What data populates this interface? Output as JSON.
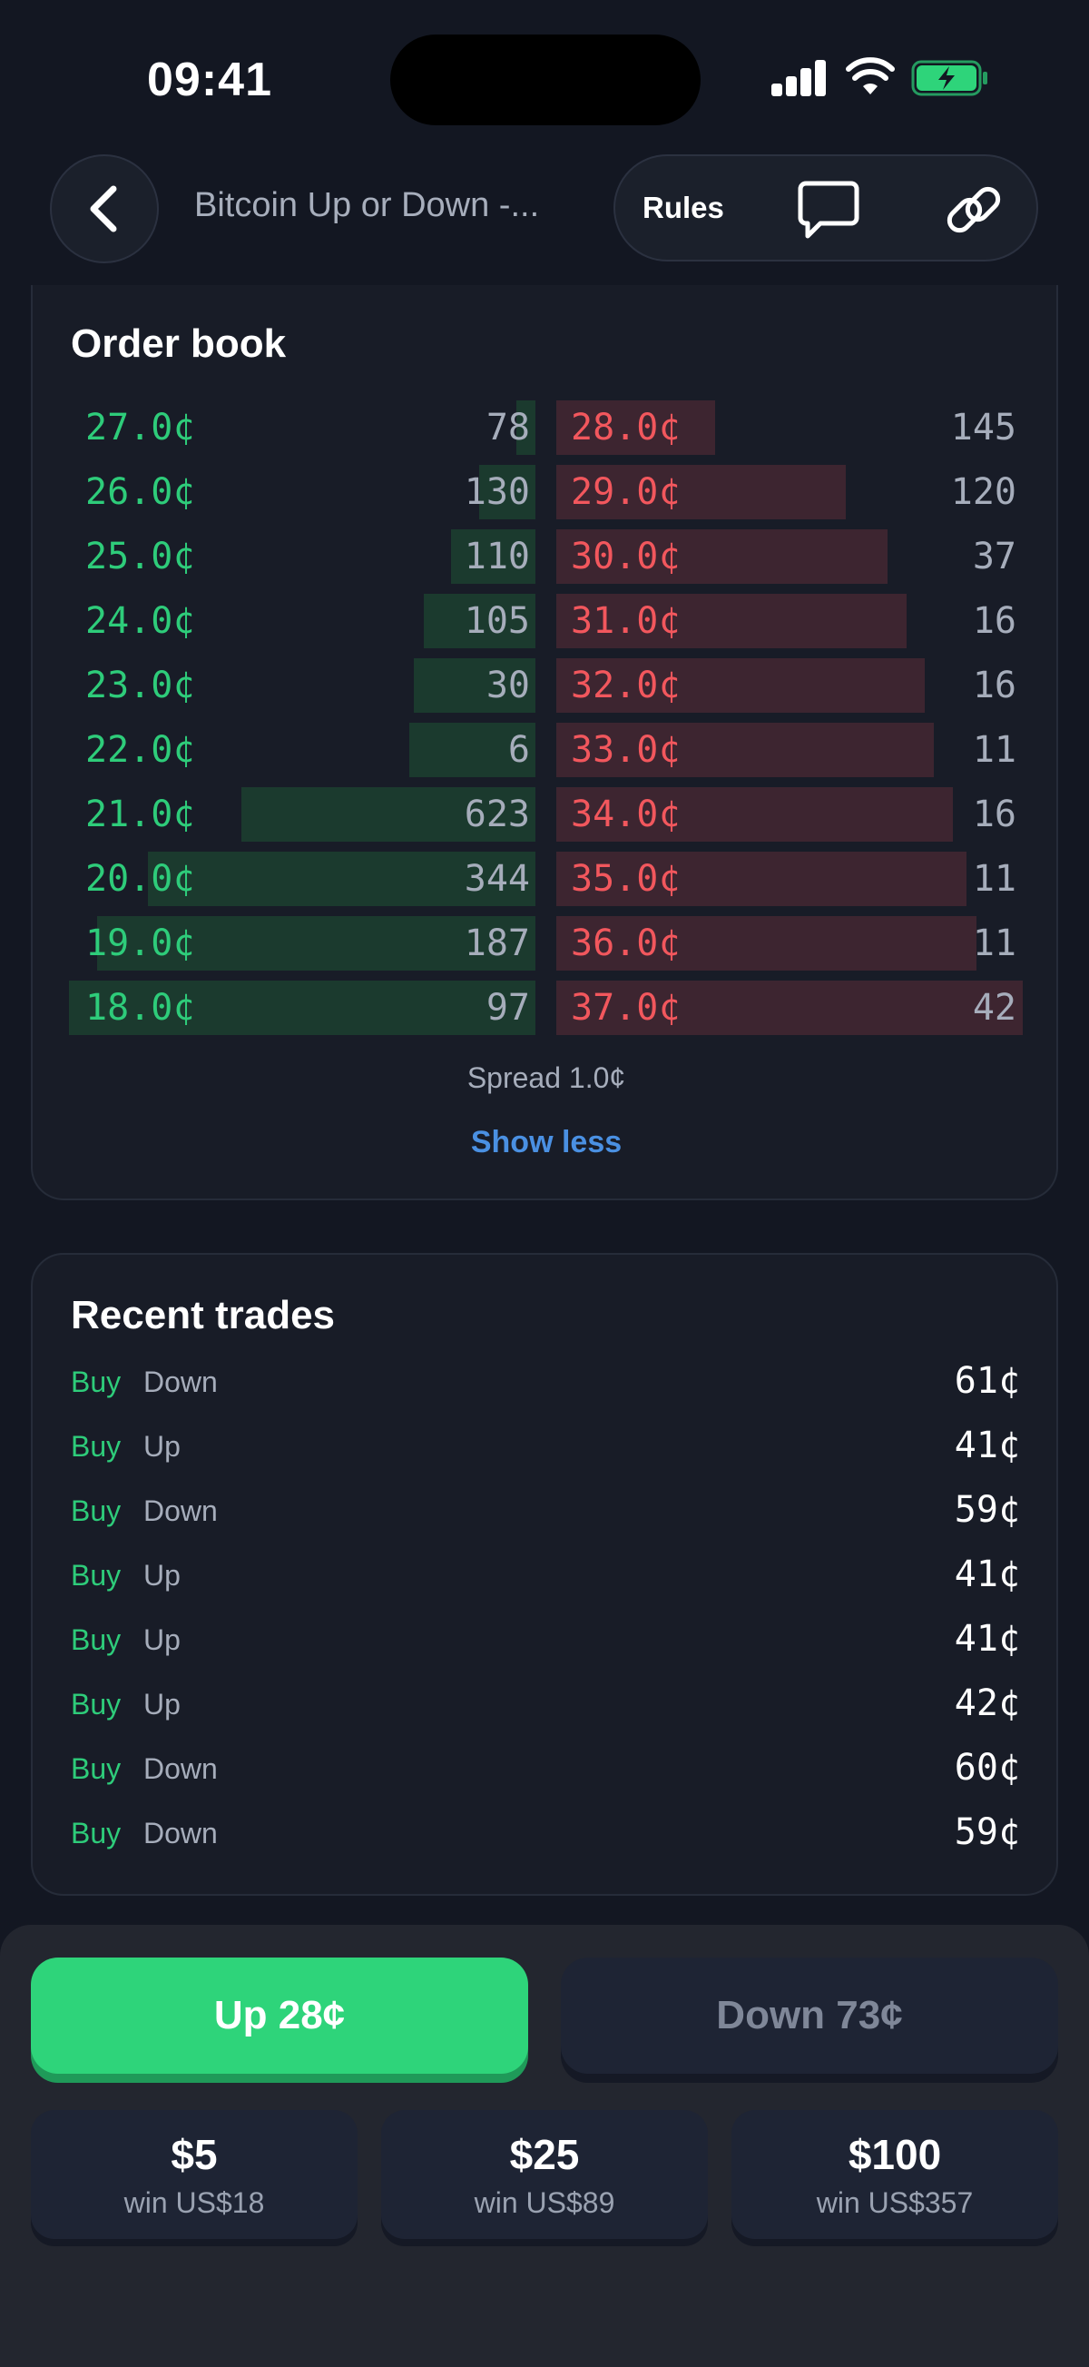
{
  "status_bar": {
    "time": "09:41"
  },
  "header": {
    "title": "Bitcoin Up or Down -...",
    "rules_label": "Rules"
  },
  "order_book": {
    "title": "Order book",
    "bids": [
      {
        "price": "27.0¢",
        "size": "78",
        "depth": 0.04
      },
      {
        "price": "26.0¢",
        "size": "130",
        "depth": 0.12
      },
      {
        "price": "25.0¢",
        "size": "110",
        "depth": 0.18
      },
      {
        "price": "24.0¢",
        "size": "105",
        "depth": 0.24
      },
      {
        "price": "23.0¢",
        "size": "30",
        "depth": 0.26
      },
      {
        "price": "22.0¢",
        "size": "6",
        "depth": 0.27
      },
      {
        "price": "21.0¢",
        "size": "623",
        "depth": 0.63
      },
      {
        "price": "20.0¢",
        "size": "344",
        "depth": 0.83
      },
      {
        "price": "19.0¢",
        "size": "187",
        "depth": 0.94
      },
      {
        "price": "18.0¢",
        "size": "97",
        "depth": 1.0
      }
    ],
    "asks": [
      {
        "price": "28.0¢",
        "size": "145",
        "depth": 0.34
      },
      {
        "price": "29.0¢",
        "size": "120",
        "depth": 0.62
      },
      {
        "price": "30.0¢",
        "size": "37",
        "depth": 0.71
      },
      {
        "price": "31.0¢",
        "size": "16",
        "depth": 0.75
      },
      {
        "price": "32.0¢",
        "size": "16",
        "depth": 0.79
      },
      {
        "price": "33.0¢",
        "size": "11",
        "depth": 0.81
      },
      {
        "price": "34.0¢",
        "size": "16",
        "depth": 0.85
      },
      {
        "price": "35.0¢",
        "size": "11",
        "depth": 0.88
      },
      {
        "price": "36.0¢",
        "size": "11",
        "depth": 0.9
      },
      {
        "price": "37.0¢",
        "size": "42",
        "depth": 1.0
      }
    ],
    "spread": "Spread 1.0¢",
    "toggle_label": "Show less"
  },
  "recent_trades": {
    "title": "Recent trades",
    "rows": [
      {
        "side": "Buy",
        "outcome": "Down",
        "price": "61¢"
      },
      {
        "side": "Buy",
        "outcome": "Up",
        "price": "41¢"
      },
      {
        "side": "Buy",
        "outcome": "Down",
        "price": "59¢"
      },
      {
        "side": "Buy",
        "outcome": "Up",
        "price": "41¢"
      },
      {
        "side": "Buy",
        "outcome": "Up",
        "price": "41¢"
      },
      {
        "side": "Buy",
        "outcome": "Up",
        "price": "42¢"
      },
      {
        "side": "Buy",
        "outcome": "Down",
        "price": "60¢"
      },
      {
        "side": "Buy",
        "outcome": "Down",
        "price": "59¢"
      }
    ]
  },
  "trade_panel": {
    "up_label": "Up 28¢",
    "down_label": "Down 73¢",
    "amounts": [
      {
        "value": "$5",
        "win": "win US$18"
      },
      {
        "value": "$25",
        "win": "win US$89"
      },
      {
        "value": "$100",
        "win": "win US$357"
      }
    ]
  },
  "colors": {
    "background": "#131722",
    "bid_green": "#2ecc7a",
    "ask_red": "#f2575d",
    "link_blue": "#4a90e2",
    "up_button": "#2ed47a"
  },
  "icons": [
    "back-chevron-icon",
    "chat-bubble-icon",
    "link-icon",
    "signal-icon",
    "wifi-icon",
    "battery-charging-icon"
  ]
}
